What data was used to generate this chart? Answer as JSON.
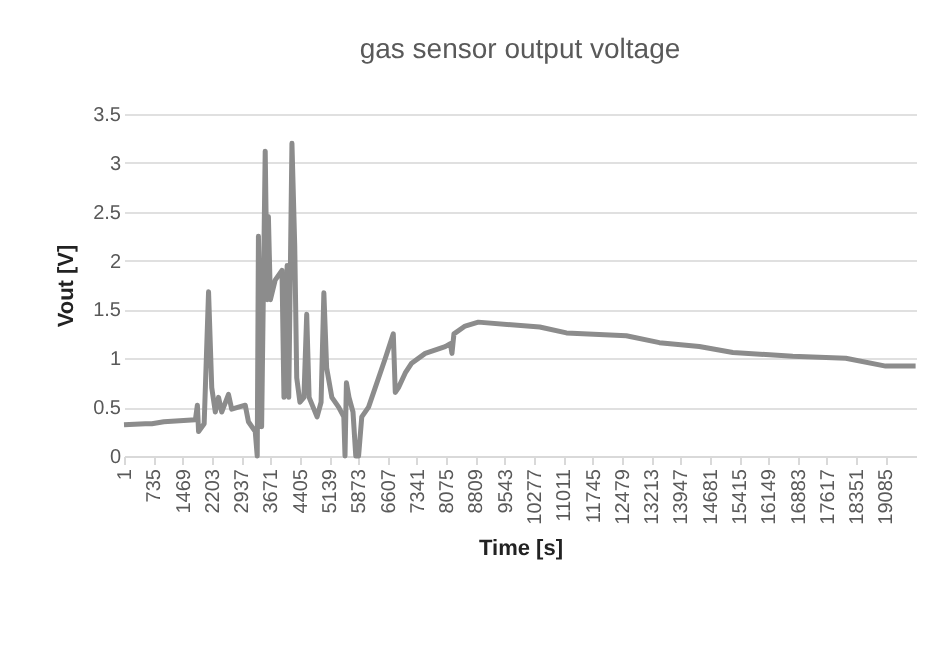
{
  "chart_data": {
    "type": "line",
    "title": "gas sensor output voltage",
    "xlabel": "Time [s]",
    "ylabel": "Vout [V]",
    "x": [
      1,
      535,
      700,
      1000,
      1790,
      1840,
      1870,
      2010,
      2120,
      2200,
      2290,
      2370,
      2450,
      2620,
      2700,
      3040,
      3120,
      3290,
      3340,
      3370,
      3450,
      3540,
      3590,
      3620,
      3670,
      3790,
      3960,
      4010,
      4090,
      4130,
      4210,
      4280,
      4330,
      4410,
      4510,
      4580,
      4640,
      4740,
      4840,
      4940,
      5010,
      5080,
      5210,
      5380,
      5510,
      5540,
      5575,
      5640,
      5740,
      5810,
      5880,
      5960,
      6130,
      6550,
      6750,
      6800,
      6880,
      7050,
      7210,
      7550,
      8050,
      8180,
      8220,
      8270,
      8550,
      8880,
      10420,
      11090,
      12590,
      13420,
      14420,
      15260,
      16760,
      18090,
      19090,
      19840
    ],
    "series": [
      {
        "color": "#8c8c8c",
        "values": [
          0.32,
          0.33,
          0.33,
          0.35,
          0.37,
          0.52,
          0.25,
          0.33,
          1.68,
          0.7,
          0.45,
          0.6,
          0.45,
          0.63,
          0.48,
          0.52,
          0.35,
          0.25,
          0,
          2.25,
          0.3,
          3.12,
          1.6,
          2.45,
          1.6,
          1.8,
          1.9,
          0.6,
          1.95,
          0.6,
          3.2,
          2.15,
          0.8,
          0.55,
          0.6,
          1.45,
          0.6,
          0.5,
          0.4,
          0.55,
          1.67,
          0.9,
          0.6,
          0.5,
          0.4,
          0,
          0.75,
          0.6,
          0.45,
          0,
          0,
          0.4,
          0.5,
          1.0,
          1.25,
          0.65,
          0.7,
          0.85,
          0.95,
          1.05,
          1.12,
          1.15,
          1.05,
          1.25,
          1.33,
          1.37,
          1.32,
          1.26,
          1.23,
          1.16,
          1.12,
          1.06,
          1.02,
          1.0,
          0.92,
          0.92
        ]
      }
    ],
    "xlim": [
      1,
      19850
    ],
    "xticks": [
      1,
      735,
      1469,
      2203,
      2937,
      3671,
      4405,
      5139,
      5873,
      6607,
      7341,
      8075,
      8809,
      9543,
      10277,
      11011,
      11745,
      12479,
      13213,
      13947,
      14681,
      15415,
      16149,
      16883,
      17617,
      18351,
      19085
    ],
    "ylim": [
      0,
      3.5
    ],
    "yticks": [
      0,
      0.5,
      1,
      1.5,
      2,
      2.5,
      3,
      3.5
    ],
    "grid": "y",
    "marker": "none",
    "line_style": "solid"
  }
}
